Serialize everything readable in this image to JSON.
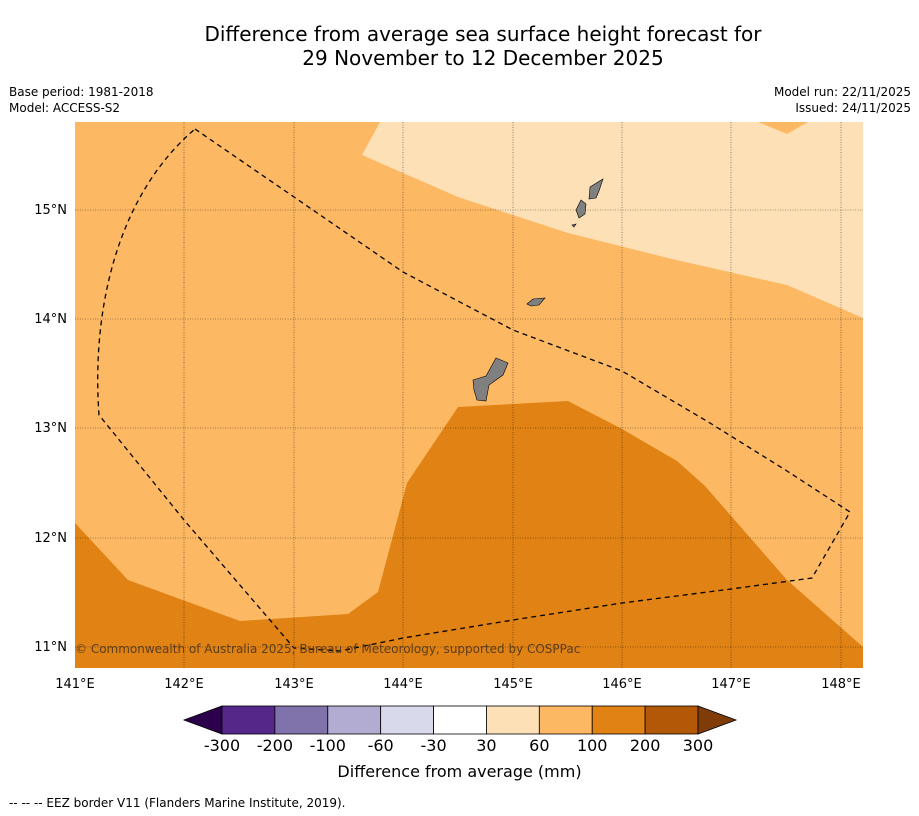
{
  "title": {
    "line1": "Difference from average sea surface height forecast for",
    "line2": "29 November to 12 December 2025"
  },
  "meta": {
    "base_period": "Base period: 1981-2018",
    "model": "Model: ACCESS-S2",
    "model_run": "Model run: 22/11/2025",
    "issued": "Issued: 24/11/2025"
  },
  "axes": {
    "lat_labels": [
      "15°N",
      "14°N",
      "13°N",
      "12°N",
      "11°N"
    ],
    "lon_labels": [
      "141°E",
      "142°E",
      "143°E",
      "144°E",
      "145°E",
      "146°E",
      "147°E",
      "148°E"
    ]
  },
  "copyright": "© Commonwealth of Australia 2025, Bureau of Meteorology, supported by COSPPac",
  "colorbar": {
    "ticks": [
      "-300",
      "-200",
      "-100",
      "-60",
      "-30",
      "30",
      "60",
      "100",
      "200",
      "300"
    ],
    "label": "Difference from average (mm)",
    "colors": {
      "below": "#2d004b",
      "bins": [
        "#542788",
        "#8073ac",
        "#b2abd2",
        "#d8daeb",
        "#ffffff",
        "#fee0b6",
        "#fdb863",
        "#e08214",
        "#b35806"
      ],
      "above": "#7f3b08"
    }
  },
  "legend": {
    "eez": "--  --  -- EEZ border V11 (Flanders Marine Institute, 2019)."
  },
  "colors": {
    "land": "#808080",
    "eez_line": "#000000"
  }
}
